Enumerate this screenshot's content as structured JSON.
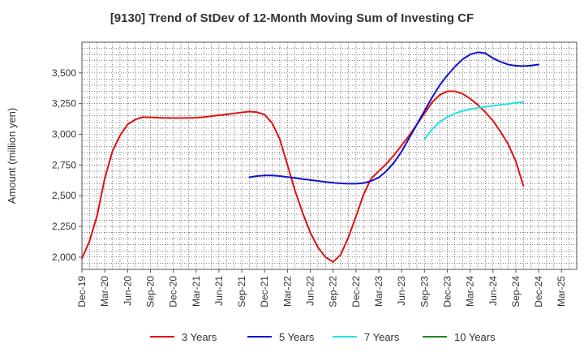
{
  "chart_data": {
    "type": "line",
    "title": "[9130]  Trend of StDev of 12-Month Moving Sum of Investing CF",
    "ylabel": "Amount (million yen)",
    "xlabel": "",
    "ylim": [
      1900,
      3750
    ],
    "yticks": [
      2000,
      2250,
      2500,
      2750,
      3000,
      3250,
      3500
    ],
    "ytick_labels": [
      "2,000",
      "2,250",
      "2,500",
      "2,750",
      "3,000",
      "3,250",
      "3,500"
    ],
    "x_tick_labels": [
      "Dec-19",
      "Mar-20",
      "Jun-20",
      "Sep-20",
      "Dec-20",
      "Mar-21",
      "Jun-21",
      "Sep-21",
      "Dec-21",
      "Mar-22",
      "Jun-22",
      "Sep-22",
      "Dec-22",
      "Mar-23",
      "Jun-23",
      "Sep-23",
      "Dec-23",
      "Mar-24",
      "Jun-24",
      "Sep-24",
      "Dec-24",
      "Mar-25"
    ],
    "grid": true,
    "legend_position": "bottom",
    "series": [
      {
        "name": "3 Years",
        "color": "#dd1111",
        "start": "Dec-19",
        "values": [
          1990,
          2130,
          2340,
          2640,
          2860,
          2990,
          3080,
          3120,
          3140,
          3138,
          3135,
          3133,
          3132,
          3132,
          3133,
          3135,
          3140,
          3148,
          3155,
          3162,
          3170,
          3178,
          3185,
          3180,
          3160,
          3090,
          2960,
          2750,
          2540,
          2360,
          2200,
          2080,
          2000,
          1960,
          2020,
          2160,
          2330,
          2510,
          2640,
          2700,
          2760,
          2830,
          2910,
          2990,
          3080,
          3170,
          3260,
          3320,
          3350,
          3350,
          3330,
          3290,
          3240,
          3180,
          3110,
          3020,
          2920,
          2780,
          2580
        ]
      },
      {
        "name": "5 Years",
        "color": "#1111cc",
        "start": "Oct-21",
        "values": [
          2650,
          2660,
          2665,
          2665,
          2660,
          2652,
          2645,
          2635,
          2628,
          2620,
          2612,
          2605,
          2600,
          2598,
          2598,
          2603,
          2620,
          2648,
          2700,
          2770,
          2860,
          2970,
          3080,
          3190,
          3300,
          3400,
          3480,
          3550,
          3610,
          3650,
          3668,
          3660,
          3620,
          3590,
          3568,
          3558,
          3555,
          3560,
          3568
        ]
      },
      {
        "name": "7 Years",
        "color": "#22e5e5",
        "start": "Sep-23",
        "values": [
          2960,
          3040,
          3100,
          3140,
          3170,
          3190,
          3205,
          3215,
          3225,
          3232,
          3240,
          3248,
          3256,
          3263
        ]
      },
      {
        "name": "10 Years",
        "color": "#228822",
        "start": "",
        "values": []
      }
    ]
  }
}
